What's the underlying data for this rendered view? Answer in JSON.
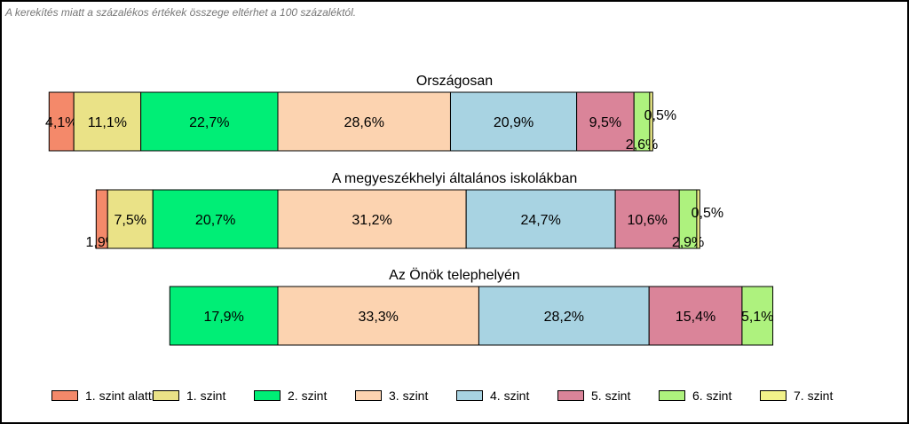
{
  "note": "A kerekítés miatt a  százalékos értékek összege eltérhet a 100 százaléktól.",
  "chart_data": {
    "type": "bar",
    "stacked": true,
    "orientation": "horizontal",
    "categories": [
      "Országosan",
      "A megyeszékhelyi általános iskolákban",
      "Az Önök telephelyén"
    ],
    "series": [
      {
        "name": "1. szint alatti",
        "color": "#F4896A",
        "values": [
          4.1,
          1.9,
          0
        ],
        "labels": [
          "4,1%",
          "1,9%",
          ""
        ]
      },
      {
        "name": "1. szint",
        "color": "#EAE287",
        "values": [
          11.1,
          7.5,
          0
        ],
        "labels": [
          "11,1%",
          "7,5%",
          ""
        ]
      },
      {
        "name": "2. szint",
        "color": "#00EE76",
        "values": [
          22.7,
          20.7,
          17.9
        ],
        "labels": [
          "22,7%",
          "20,7%",
          "17,9%"
        ]
      },
      {
        "name": "3. szint",
        "color": "#FCD3B0",
        "values": [
          28.6,
          31.2,
          33.3
        ],
        "labels": [
          "28,6%",
          "31,2%",
          "33,3%"
        ]
      },
      {
        "name": "4. szint",
        "color": "#A8D3E2",
        "values": [
          20.9,
          24.7,
          28.2
        ],
        "labels": [
          "20,9%",
          "24,7%",
          "28,2%"
        ]
      },
      {
        "name": "5. szint",
        "color": "#DA8499",
        "values": [
          9.5,
          10.6,
          15.4
        ],
        "labels": [
          "9,5%",
          "10,6%",
          "15,4%"
        ]
      },
      {
        "name": "6. szint",
        "color": "#AEF27E",
        "values": [
          2.6,
          2.9,
          5.1
        ],
        "labels": [
          "2,6%",
          "2,9%",
          "5,1%"
        ]
      },
      {
        "name": "7. szint",
        "color": "#F2F28A",
        "values": [
          0.5,
          0.5,
          0
        ],
        "labels": [
          "0,5%",
          "0,5%",
          ""
        ]
      }
    ],
    "grid": false,
    "legend": "bottom"
  }
}
